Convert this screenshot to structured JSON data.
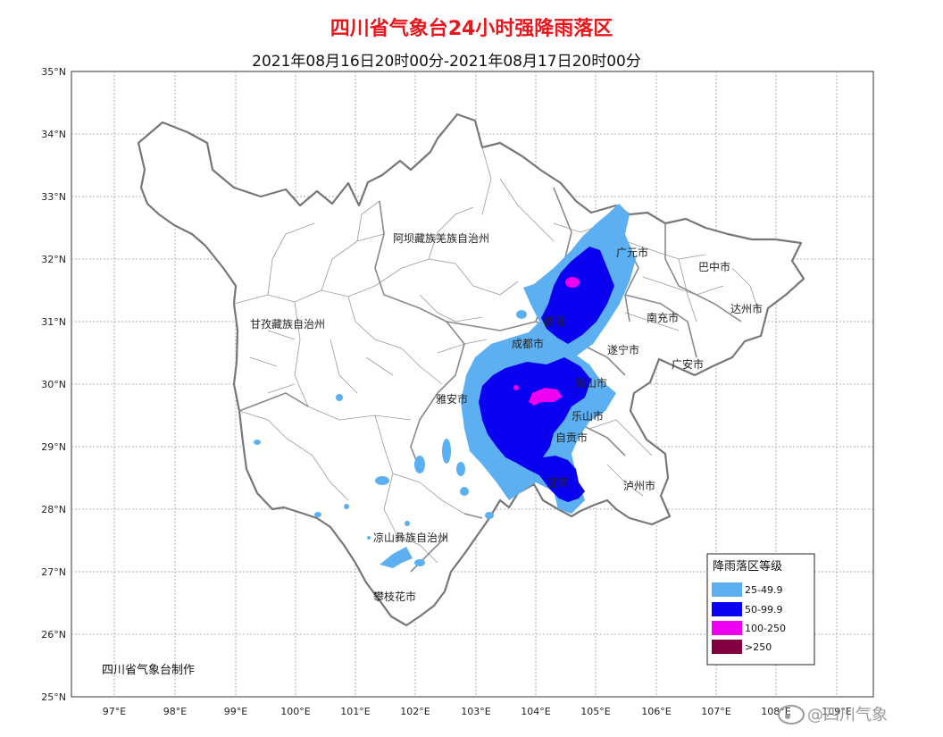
{
  "map": {
    "title": "四川省气象台24小时强降雨落区",
    "subtitle": "2021年08月16日20时00分-2021年08月17日20时00分",
    "credit": "四川省气象台制作",
    "lat_labels": [
      "35°N",
      "34°N",
      "33°N",
      "32°N",
      "31°N",
      "30°N",
      "29°N",
      "28°N",
      "27°N",
      "26°N",
      "25°N"
    ],
    "lon_labels": [
      "97°E",
      "98°E",
      "99°E",
      "100°E",
      "101°E",
      "102°E",
      "103°E",
      "104°E",
      "105°E",
      "106°E",
      "107°E",
      "108°E",
      "109°E"
    ],
    "regions": {
      "aba": "阿坝藏族羌族自治州",
      "ganzi": "甘孜藏族自治州",
      "liangshan": "凉山彝族自治州",
      "panzhihua": "攀枝花市",
      "yaan": "雅安市",
      "chengdu": "成都市",
      "deyang": "德阳",
      "guangyuan": "广元市",
      "bazhong": "巴中市",
      "dazhou": "达州市",
      "nanchong": "南充市",
      "suining": "遂宁市",
      "guangan": "广安市",
      "meishan": "眉山市",
      "leshan": "乐山市",
      "zigong": "自贡市",
      "luzhou": "泸州市",
      "yibin": "宜宾"
    },
    "legend": {
      "title": "降雨落区等级",
      "items": [
        {
          "label": "25-49.9",
          "color": "#5cb0f2"
        },
        {
          "label": "50-99.9",
          "color": "#0a00f0"
        },
        {
          "label": "100-250",
          "color": "#f000f0"
        },
        {
          "label": ">250",
          "color": "#800040"
        }
      ]
    },
    "watermark": "@四川气象"
  }
}
